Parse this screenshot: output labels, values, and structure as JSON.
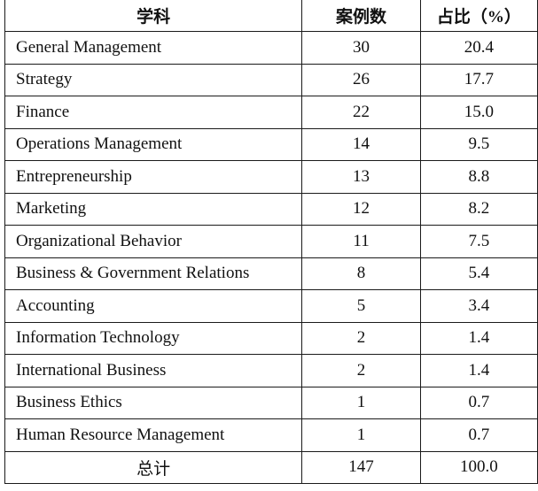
{
  "table": {
    "headers": {
      "subject": "学科",
      "cases": "案例数",
      "share": "占比（%）"
    },
    "rows": [
      {
        "subject": "General Management",
        "cases": "30",
        "share": "20.4"
      },
      {
        "subject": "Strategy",
        "cases": "26",
        "share": "17.7"
      },
      {
        "subject": "Finance",
        "cases": "22",
        "share": "15.0"
      },
      {
        "subject": "Operations Management",
        "cases": "14",
        "share": "9.5"
      },
      {
        "subject": "Entrepreneurship",
        "cases": "13",
        "share": "8.8"
      },
      {
        "subject": "Marketing",
        "cases": "12",
        "share": "8.2"
      },
      {
        "subject": "Organizational Behavior",
        "cases": "11",
        "share": "7.5"
      },
      {
        "subject": "Business & Government Relations",
        "cases": "8",
        "share": "5.4"
      },
      {
        "subject": "Accounting",
        "cases": "5",
        "share": "3.4"
      },
      {
        "subject": "Information Technology",
        "cases": "2",
        "share": "1.4"
      },
      {
        "subject": "International Business",
        "cases": "2",
        "share": "1.4"
      },
      {
        "subject": "Business Ethics",
        "cases": "1",
        "share": "0.7"
      },
      {
        "subject": "Human Resource Management",
        "cases": "1",
        "share": "0.7"
      }
    ],
    "total": {
      "subject": "总计",
      "cases": "147",
      "share": "100.0"
    }
  }
}
